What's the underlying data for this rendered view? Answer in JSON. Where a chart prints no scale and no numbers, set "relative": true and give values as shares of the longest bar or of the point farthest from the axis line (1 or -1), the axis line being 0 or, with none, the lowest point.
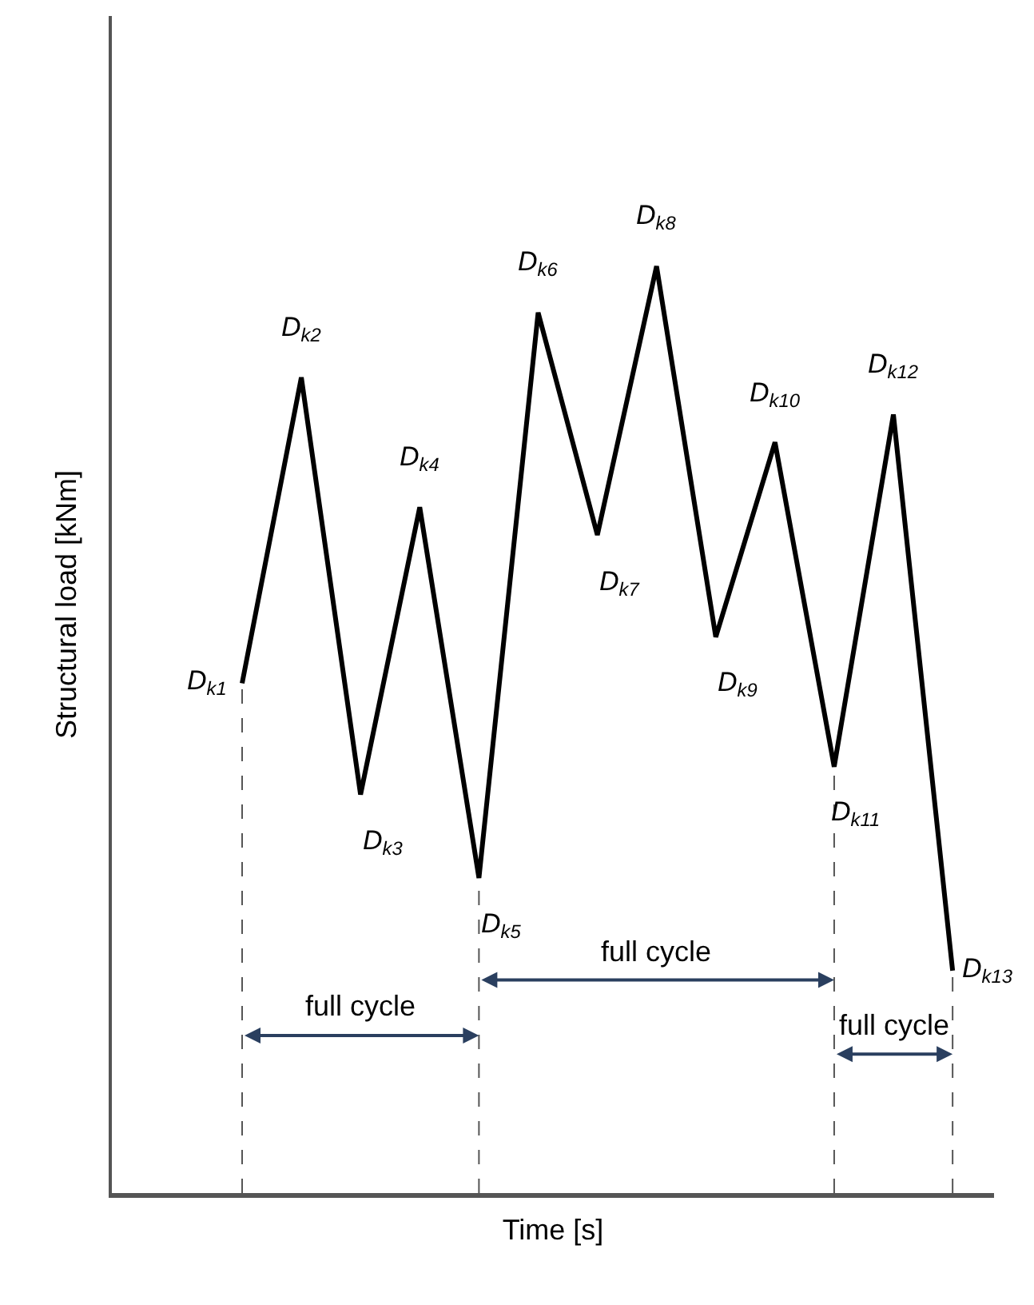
{
  "chart_data": {
    "type": "line",
    "relative": true,
    "xlabel": "Time [s]",
    "ylabel": "Structural load [kNm]",
    "categories": [
      null,
      null,
      null,
      null,
      null,
      null,
      null,
      null,
      null,
      null,
      null,
      null,
      null
    ],
    "series": [
      {
        "color": "#000000",
        "values": [
          0.55,
          0.88,
          0.43,
          0.74,
          0.34,
          0.95,
          0.71,
          1.0,
          0.6,
          0.81,
          0.46,
          0.84,
          0.24
        ]
      }
    ],
    "annotations": [
      "D$_{k1}$",
      "D$_{k2}$",
      "D$_{k3}$",
      "D$_{k4}$",
      "D$_{k5}$",
      "D$_{k6}$",
      "D$_{k7}$",
      "D$_{k8}$",
      "D$_{k9}$",
      "D$_{k10}$",
      "D$_{k11}$",
      "D$_{k12}$",
      "D$_{k13}$",
      "full cycle",
      "full cycle",
      "full cycle"
    ],
    "marker": "none",
    "line_style": "solid",
    "tick_labels": false
  }
}
